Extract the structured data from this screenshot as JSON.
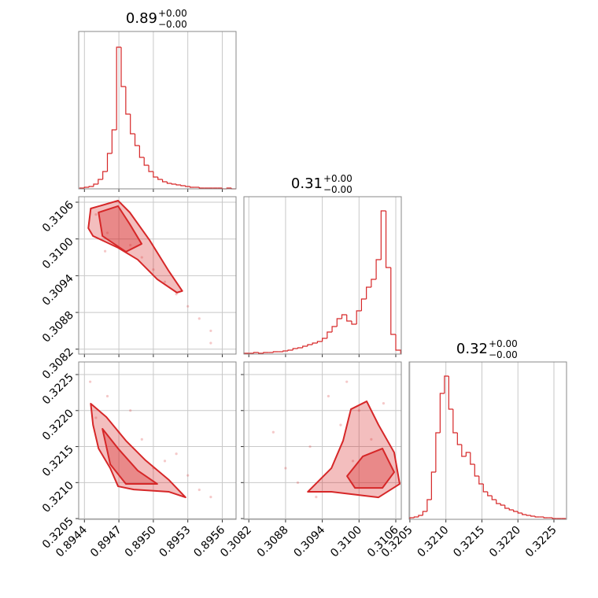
{
  "chart_data": [
    {
      "type": "histogram",
      "title": "0.89",
      "title_upper": "+0.00",
      "title_lower": "−0.00",
      "color": "#d62728",
      "bins": [
        0.89436,
        0.8944,
        0.89444,
        0.89448,
        0.89452,
        0.89456,
        0.8946,
        0.89464,
        0.89468,
        0.89472,
        0.89476,
        0.8948,
        0.89484,
        0.89488,
        0.89492,
        0.89496,
        0.895,
        0.89504,
        0.89508,
        0.89512,
        0.89516,
        0.8952,
        0.89524,
        0.89528,
        0.89532,
        0.89536,
        0.8954,
        0.89544,
        0.89548,
        0.89552,
        0.89556,
        0.8956,
        0.89564,
        0.89568,
        0.89572
      ],
      "values": [
        1,
        2,
        3,
        6,
        12,
        22,
        45,
        75,
        180,
        130,
        95,
        70,
        55,
        40,
        30,
        22,
        15,
        12,
        9,
        7,
        6,
        5,
        4,
        3,
        2,
        2,
        1,
        1,
        1,
        1,
        1,
        0,
        1,
        0
      ],
      "xlim": [
        0.89435,
        0.89572
      ],
      "ylim": [
        0,
        200
      ],
      "xticks": [
        0.8944,
        0.8947,
        {
          "value": 0.895,
          "label": "0.8950"
        },
        0.8953,
        0.8956
      ],
      "xtick_labels": false,
      "grid": true
    },
    {
      "type": "scatter",
      "color": "#d62728",
      "x": [
        0.8945,
        0.89458,
        0.8949,
        0.8951,
        0.8952,
        0.8953,
        0.8954,
        0.8955,
        0.8955,
        0.8946,
        0.8948,
        0.895
      ],
      "y": [
        0.3104,
        0.3098,
        0.3097,
        0.3093,
        0.3091,
        0.3089,
        0.3087,
        0.3085,
        0.3083,
        0.3101,
        0.3099,
        0.3095
      ],
      "contours": [
        {
          "x": [
            0.894455,
            0.894693,
            0.894795,
            0.894966,
            0.895136,
            0.895252,
            0.895205,
            0.895034,
            0.894864,
            0.894693,
            0.894475,
            0.894434
          ],
          "y": [
            0.310497,
            0.310626,
            0.310433,
            0.309984,
            0.309471,
            0.30915,
            0.309124,
            0.309342,
            0.309663,
            0.309856,
            0.310048,
            0.310176
          ]
        },
        {
          "x": [
            0.894523,
            0.894693,
            0.894795,
            0.894898,
            0.894761,
            0.894557
          ],
          "y": [
            0.310433,
            0.310536,
            0.310241,
            0.30992,
            0.309791,
            0.310048
          ]
        }
      ],
      "xlim": [
        0.89435,
        0.89572
      ],
      "ylim": [
        0.30812,
        0.31069
      ],
      "xticks": [
        0.8944,
        0.8947,
        {
          "value": 0.895,
          "label": "0.8950"
        },
        0.8953,
        0.8956
      ],
      "yticks": [
        0.3082,
        0.3088,
        0.3094,
        {
          "value": 0.31,
          "label": "0.3100"
        },
        0.3106
      ],
      "xtick_labels": false,
      "ytick_labels": true,
      "grid": true
    },
    {
      "type": "histogram",
      "title": "0.31",
      "title_upper": "+0.00",
      "title_lower": "−0.00",
      "color": "#d62728",
      "bins": [
        0.30812,
        0.3082,
        0.30828,
        0.30836,
        0.30844,
        0.30852,
        0.3086,
        0.30868,
        0.30876,
        0.30884,
        0.30892,
        0.309,
        0.30908,
        0.30916,
        0.30924,
        0.30932,
        0.3094,
        0.30948,
        0.30956,
        0.30964,
        0.30972,
        0.3098,
        0.30988,
        0.30996,
        0.31004,
        0.31012,
        0.3102,
        0.31028,
        0.31036,
        0.31044,
        0.31052,
        0.3106,
        0.31068
      ],
      "values": [
        1,
        1,
        2,
        1,
        2,
        2,
        3,
        3,
        4,
        5,
        7,
        8,
        10,
        12,
        14,
        16,
        20,
        28,
        35,
        45,
        50,
        42,
        38,
        55,
        70,
        85,
        95,
        120,
        182,
        110,
        25,
        5
      ],
      "xlim": [
        0.30812,
        0.31069
      ],
      "ylim": [
        0,
        200
      ],
      "xticks": [
        0.3082,
        0.3088,
        0.3094,
        {
          "value": 0.31,
          "label": "0.3100"
        },
        0.3106
      ],
      "xtick_labels": false,
      "grid": true
    },
    {
      "type": "scatter",
      "color": "#d62728",
      "x": [
        0.89445,
        0.8945,
        0.8948,
        0.8949,
        0.8951,
        0.8952,
        0.8953,
        0.8954,
        0.8955,
        0.8946,
        0.8947,
        0.895
      ],
      "y": [
        0.3224,
        0.3219,
        0.322,
        0.3216,
        0.3213,
        0.3214,
        0.3211,
        0.3209,
        0.3208,
        0.3222,
        0.3217,
        0.3212
      ],
      "contours": [
        {
          "x": [
            0.894455,
            0.894591,
            0.894761,
            0.894932,
            0.895136,
            0.89528,
            0.895136,
            0.894829,
            0.894693,
            0.894625,
            0.894523,
            0.894475
          ],
          "y": [
            0.322096,
            0.32191,
            0.321582,
            0.321309,
            0.321036,
            0.320795,
            0.320872,
            0.320904,
            0.320948,
            0.321199,
            0.321473,
            0.321801
          ]
        },
        {
          "x": [
            0.894557,
            0.894693,
            0.894864,
            0.895034,
            0.894761,
            0.894625
          ],
          "y": [
            0.321746,
            0.321473,
            0.321167,
            0.320981,
            0.320981,
            0.321254
          ]
        }
      ],
      "xlim": [
        0.89435,
        0.89572
      ],
      "ylim": [
        0.32049,
        0.322675
      ],
      "xticks": [
        0.8944,
        0.8947,
        {
          "value": 0.895,
          "label": "0.8950"
        },
        0.8953,
        0.8956
      ],
      "yticks": [
        0.3205,
        {
          "value": 0.321,
          "label": "0.3210"
        },
        0.3215,
        {
          "value": 0.322,
          "label": "0.3220"
        },
        0.3225
      ],
      "xtick_labels": true,
      "ytick_labels": true,
      "grid": true
    },
    {
      "type": "scatter",
      "color": "#d62728",
      "x": [
        0.3086,
        0.3088,
        0.309,
        0.3092,
        0.3095,
        0.3097,
        0.3098,
        0.31,
        0.3102,
        0.3104,
        0.3093,
        0.3099
      ],
      "y": [
        0.3217,
        0.3212,
        0.321,
        0.3215,
        0.3222,
        0.3218,
        0.3224,
        0.322,
        0.3216,
        0.3221,
        0.3208,
        0.3213
      ],
      "contours": [
        {
          "x": [
            0.309163,
            0.309548,
            0.30974,
            0.309868,
            0.310125,
            0.310318,
            0.310574,
            0.310664,
            0.310318,
            0.309548
          ],
          "y": [
            0.320872,
            0.321199,
            0.321582,
            0.322019,
            0.322128,
            0.321801,
            0.321418,
            0.320981,
            0.320795,
            0.320872
          ]
        },
        {
          "x": [
            0.309804,
            0.310061,
            0.310382,
            0.310574,
            0.310382,
            0.309933
          ],
          "y": [
            0.32109,
            0.321363,
            0.321473,
            0.321145,
            0.320926,
            0.320926
          ]
        }
      ],
      "xlim": [
        0.30812,
        0.31069
      ],
      "ylim": [
        0.32049,
        0.322675
      ],
      "xticks": [
        0.3082,
        0.3088,
        0.3094,
        {
          "value": 0.31,
          "label": "0.3100"
        },
        0.3106
      ],
      "yticks": [
        0.3205,
        {
          "value": 0.321,
          "label": "0.3210"
        },
        0.3215,
        {
          "value": 0.322,
          "label": "0.3220"
        },
        0.3225
      ],
      "xtick_labels": true,
      "ytick_labels": false,
      "grid": true
    },
    {
      "type": "histogram",
      "title": "0.32",
      "title_upper": "+0.00",
      "title_lower": "−0.00",
      "color": "#d62728",
      "bins": [
        0.3205,
        0.32056,
        0.32062,
        0.32068,
        0.32074,
        0.3208,
        0.32086,
        0.32092,
        0.32098,
        0.32104,
        0.3211,
        0.32116,
        0.32122,
        0.32128,
        0.32134,
        0.3214,
        0.32146,
        0.32152,
        0.32158,
        0.32164,
        0.3217,
        0.32176,
        0.32182,
        0.32188,
        0.32194,
        0.322,
        0.32206,
        0.32212,
        0.32218,
        0.32224,
        0.3223,
        0.32236,
        0.32242,
        0.32248,
        0.32254,
        0.3226,
        0.32266
      ],
      "values": [
        2,
        3,
        5,
        10,
        25,
        60,
        110,
        160,
        182,
        140,
        110,
        95,
        80,
        85,
        70,
        55,
        45,
        35,
        30,
        25,
        20,
        18,
        14,
        12,
        10,
        8,
        6,
        5,
        4,
        3,
        3,
        2,
        2,
        1,
        1,
        1
      ],
      "xlim": [
        0.32049,
        0.322675
      ],
      "ylim": [
        0,
        200
      ],
      "xticks": [
        0.3205,
        {
          "value": 0.321,
          "label": "0.3210"
        },
        0.3215,
        {
          "value": 0.322,
          "label": "0.3220"
        },
        0.3225
      ],
      "xtick_labels": true,
      "grid": true
    }
  ]
}
